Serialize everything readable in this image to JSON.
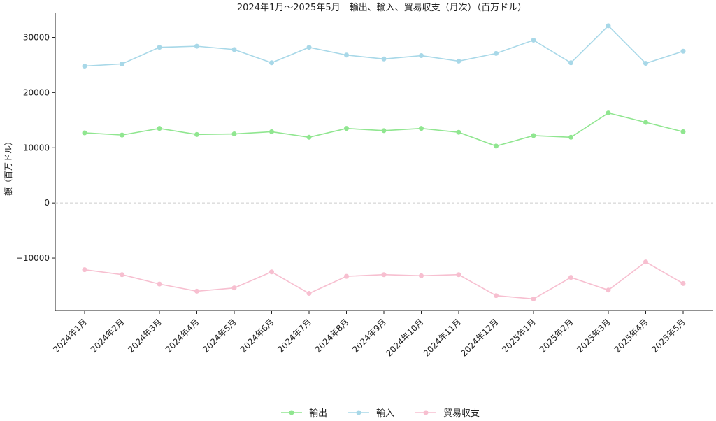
{
  "chart_data": {
    "type": "line",
    "title": "2024年1月～2025年5月　輸出、輸入、貿易収支（月次）（百万ドル）",
    "xlabel": "",
    "ylabel": "額（百万ドル）",
    "ylim": [
      -19500,
      34500
    ],
    "yticks": [
      -10000,
      0,
      10000,
      20000,
      30000
    ],
    "ytick_labels": [
      "−10000",
      "0",
      "10000",
      "20000",
      "30000"
    ],
    "grid": false,
    "zero_line": true,
    "legend_position": "bottom-center",
    "categories": [
      "2024年1月",
      "2024年2月",
      "2024年3月",
      "2024年4月",
      "2024年5月",
      "2024年6月",
      "2024年7月",
      "2024年8月",
      "2024年9月",
      "2024年10月",
      "2024年11月",
      "2024年12月",
      "2025年1月",
      "2025年2月",
      "2025年3月",
      "2025年4月",
      "2025年5月"
    ],
    "series": [
      {
        "name": "輸出",
        "color": "#90e690",
        "values": [
          12700,
          12300,
          13500,
          12400,
          12500,
          12900,
          11900,
          13500,
          13100,
          13500,
          12800,
          10300,
          12200,
          11900,
          16300,
          14600,
          12900
        ]
      },
      {
        "name": "輸入",
        "color": "#a8d8e8",
        "values": [
          24800,
          25200,
          28200,
          28400,
          27800,
          25400,
          28200,
          26800,
          26100,
          26700,
          25700,
          27100,
          29500,
          25400,
          32100,
          25300,
          27500
        ]
      },
      {
        "name": "貿易収支",
        "color": "#f7bfd0",
        "values": [
          -12100,
          -13000,
          -14700,
          -16000,
          -15400,
          -12500,
          -16400,
          -13300,
          -13000,
          -13200,
          -13000,
          -16800,
          -17400,
          -13500,
          -15800,
          -10700,
          -14600
        ]
      }
    ]
  }
}
